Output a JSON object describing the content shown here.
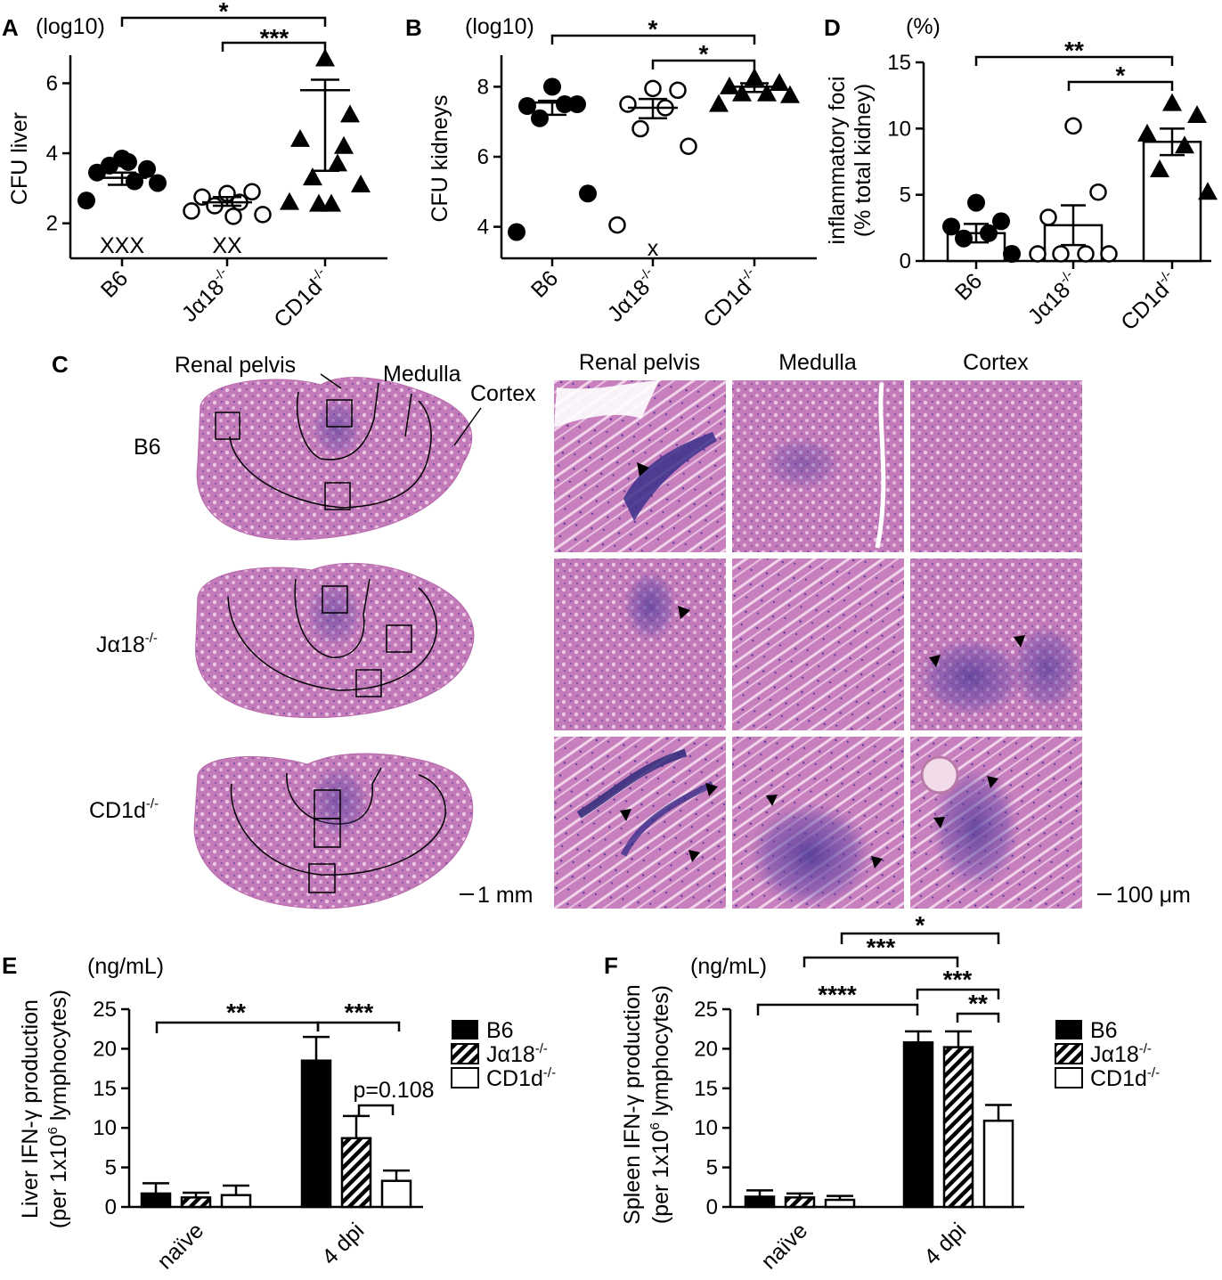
{
  "colors": {
    "bar_black": "#000000",
    "he_pink": "#c06fb2",
    "he_dark": "#4a3a9e",
    "he_bg": "#d68cc8",
    "white": "#ffffff"
  },
  "panel_letters": {
    "A": "A",
    "B": "B",
    "C": "C",
    "D": "D",
    "E": "E",
    "F": "F"
  },
  "chart_data": [
    {
      "panel": "A",
      "type": "scatter",
      "unit": "(log10)",
      "ylabel": "CFU liver",
      "yticks": [
        "2",
        "4",
        "6"
      ],
      "ylim": [
        1,
        6.8
      ],
      "categories": [
        "B6",
        "Jα18",
        "CD1d"
      ],
      "superscript": "-/-",
      "series": [
        {
          "group": "B6",
          "marker": "circle-filled",
          "values": [
            3.85,
            3.55,
            3.45,
            3.2,
            3.65,
            3.15,
            2.65,
            3.75
          ]
        },
        {
          "group": "Jα18",
          "marker": "circle-open",
          "values": [
            2.85,
            2.9,
            2.75,
            2.6,
            2.5,
            2.25,
            2.35,
            2.2
          ]
        },
        {
          "group": "CD1d",
          "marker": "triangle-filled",
          "values": [
            6.7,
            5.1,
            4.4,
            3.7,
            3.3,
            3.1,
            2.6,
            2.55,
            2.55,
            4.2
          ]
        }
      ],
      "means": [
        3.3,
        2.6,
        5.8
      ],
      "errors": [
        [
          3.1,
          3.45
        ],
        [
          2.5,
          2.75
        ],
        [
          3.5,
          6.1
        ]
      ],
      "excluded_marks": [
        "XXX",
        "XX"
      ],
      "significance": [
        {
          "from": "B6",
          "to": "CD1d",
          "label": "*"
        },
        {
          "from": "Jα18",
          "to": "CD1d",
          "label": "***"
        }
      ]
    },
    {
      "panel": "B",
      "type": "scatter",
      "unit": "(log10)",
      "ylabel": "CFU kidneys",
      "yticks": [
        "4",
        "6",
        "8"
      ],
      "ylim": [
        3.1,
        8.9
      ],
      "categories": [
        "B6",
        "Jα18",
        "CD1d"
      ],
      "superscript": "-/-",
      "series": [
        {
          "group": "B6",
          "marker": "circle-filled",
          "values": [
            8.0,
            7.5,
            7.45,
            7.5,
            7.1,
            4.95,
            3.85
          ]
        },
        {
          "group": "Jα18",
          "marker": "circle-open",
          "values": [
            7.95,
            7.9,
            7.5,
            7.4,
            6.8,
            6.3,
            4.05
          ]
        },
        {
          "group": "CD1d",
          "marker": "triangle-filled",
          "values": [
            8.25,
            8.1,
            8.0,
            7.8,
            7.8,
            7.75,
            7.5
          ]
        }
      ],
      "means": [
        7.55,
        7.4,
        8.0
      ],
      "errors": [
        [
          7.2,
          7.6
        ],
        [
          7.1,
          7.65
        ],
        [
          7.85,
          8.1
        ]
      ],
      "excluded_marks": [
        "x"
      ],
      "significance": [
        {
          "from": "B6",
          "to": "CD1d",
          "label": "*"
        },
        {
          "from": "Jα18",
          "to": "CD1d",
          "label": "*"
        }
      ]
    },
    {
      "panel": "D",
      "type": "bar",
      "unit": "(%)",
      "ylabel": [
        "inflammatory foci",
        "(% total kidney)"
      ],
      "yticks": [
        "0",
        "5",
        "10",
        "15"
      ],
      "ylim": [
        0,
        15
      ],
      "categories": [
        "B6",
        "Jα18",
        "CD1d"
      ],
      "superscript": "-/-",
      "values": [
        2.1,
        2.7,
        9.0
      ],
      "errors": [
        0.7,
        1.5,
        1.0
      ],
      "points": [
        [
          4.4,
          3.0,
          2.6,
          2.1,
          1.7,
          0.1
        ],
        [
          10.2,
          5.2,
          3.3,
          0.1,
          0.1,
          0.1,
          0.1
        ],
        [
          11.9,
          11.0,
          9.6,
          8.7,
          6.9,
          5.2
        ]
      ],
      "significance": [
        {
          "from": "B6",
          "to": "CD1d",
          "label": "**"
        },
        {
          "from": "Jα18",
          "to": "CD1d",
          "label": "*"
        }
      ]
    },
    {
      "panel": "E",
      "type": "bar",
      "unit": "(ng/mL)",
      "ylabel": [
        "Liver IFN-γ production",
        "(per 1x10",
        "6",
        " lymphocytes)"
      ],
      "yticks": [
        "0",
        "5",
        "10",
        "15",
        "20",
        "25"
      ],
      "ylim": [
        0,
        25
      ],
      "categories": [
        "naïve",
        "4 dpi"
      ],
      "series": [
        {
          "name": "B6",
          "values": [
            1.7,
            18.5
          ],
          "errors": [
            1.3,
            3.0
          ]
        },
        {
          "name": "Jα18",
          "values": [
            1.2,
            8.7
          ],
          "errors": [
            0.6,
            2.8
          ]
        },
        {
          "name": "CD1d",
          "values": [
            1.5,
            3.3
          ],
          "errors": [
            1.2,
            1.3
          ]
        }
      ],
      "significance": [
        {
          "label": "**"
        },
        {
          "label": "***"
        },
        {
          "label": "p=0.108"
        }
      ]
    },
    {
      "panel": "F",
      "type": "bar",
      "unit": "(ng/mL)",
      "ylabel": [
        "Spleen IFN-γ production",
        "(per 1x10",
        "6",
        " lymphocytes)"
      ],
      "yticks": [
        "0",
        "5",
        "10",
        "15",
        "20",
        "25"
      ],
      "ylim": [
        0,
        25
      ],
      "categories": [
        "naïve",
        "4 dpi"
      ],
      "series": [
        {
          "name": "B6",
          "values": [
            1.3,
            20.8
          ],
          "errors": [
            0.8,
            1.4
          ]
        },
        {
          "name": "Jα18",
          "values": [
            1.2,
            20.2
          ],
          "errors": [
            0.5,
            2.0
          ]
        },
        {
          "name": "CD1d",
          "values": [
            0.9,
            10.9
          ],
          "errors": [
            0.5,
            2.0
          ]
        }
      ],
      "significance": [
        {
          "label": "*"
        },
        {
          "label": "***"
        },
        {
          "label": "****"
        },
        {
          "label": "***"
        },
        {
          "label": "**"
        }
      ]
    }
  ],
  "panel_c": {
    "column_labels": [
      "Renal pelvis",
      "Medulla",
      "Cortex"
    ],
    "region_labels": [
      "Renal pelvis",
      "Medulla",
      "Cortex"
    ],
    "row_labels": [
      "B6",
      "Jα18",
      "CD1d"
    ],
    "superscript": "-/-",
    "scale_left": "1 mm",
    "scale_right": "100 μm"
  },
  "legend": {
    "items": [
      "B6",
      "Jα18",
      "CD1d"
    ],
    "superscript": "-/-"
  }
}
